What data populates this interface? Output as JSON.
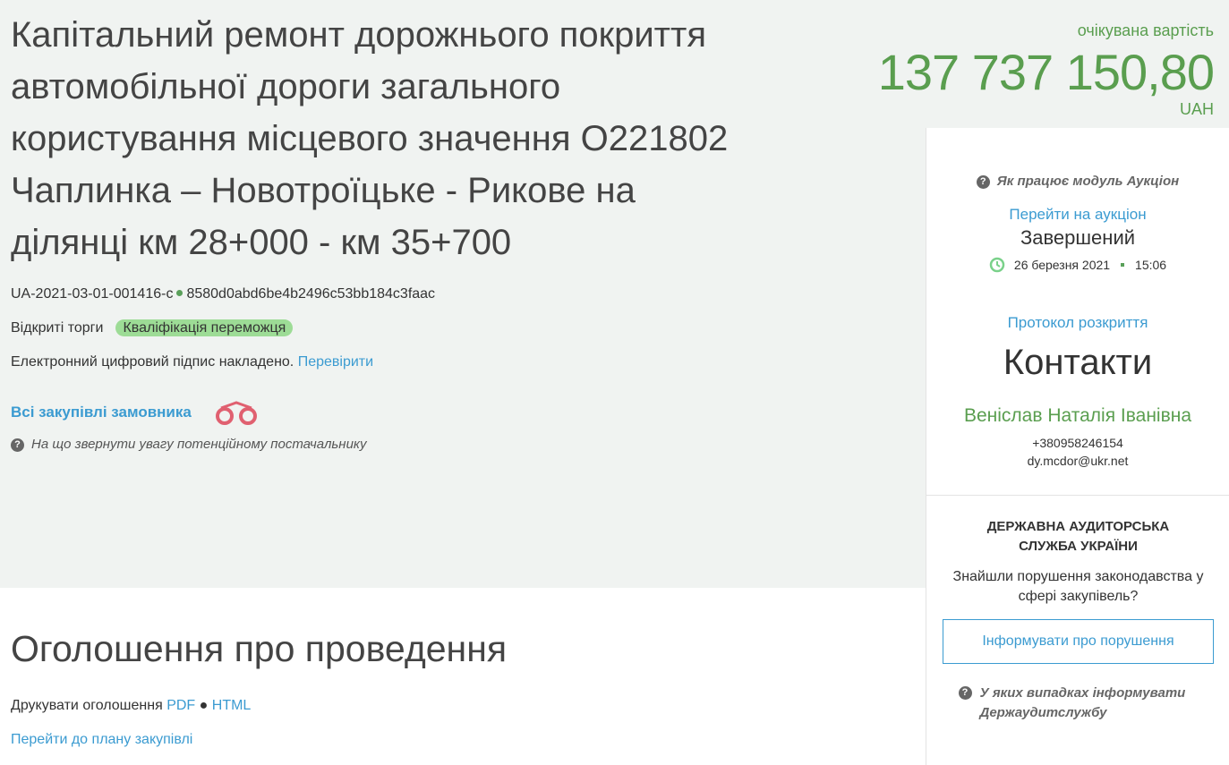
{
  "tender": {
    "title": "Капітальний ремонт дорожнього покриття автомобільної дороги загального користування місцевого значення О221802 Чаплинка – Новотроїцьке - Рикове на ділянці км 28+000 - км 35+700",
    "id": "UA-2021-03-01-001416-c",
    "hash": "8580d0abd6be4b2496c53bb184c3faac",
    "type": "Відкриті торги",
    "status": "Кваліфікація переможця",
    "signature_text": "Електронний цифровий підпис накладено.",
    "signature_link": "Перевірити",
    "all_purchases": "Всі закупівлі замовника",
    "hint": "На що звернути увагу потенційному постачальнику"
  },
  "price": {
    "label": "очікувана вартість",
    "value": "137 737 150,80",
    "currency": "UAH"
  },
  "auction": {
    "help": "Як працює модуль Аукціон",
    "link": "Перейти на аукціон",
    "status": "Завершений",
    "date": "26 березня 2021",
    "time": "15:06",
    "protocol": "Протокол розкриття"
  },
  "contacts": {
    "title": "Контакти",
    "name": "Веніслав Наталія Іванівна",
    "phone": "+380958246154",
    "email": "dy.mcdor@ukr.net"
  },
  "audit": {
    "title": "ДЕРЖАВНА АУДИТОРСЬКА СЛУЖБА УКРАЇНИ",
    "question": "Знайшли порушення законодавства у сфері закупівель?",
    "button": "Інформувати про порушення",
    "help": "У яких випадках інформувати Держаудитслужбу"
  },
  "announcement": {
    "title": "Оголошення про проведення",
    "print": "Друкувати оголошення",
    "pdf": "PDF",
    "html": "HTML",
    "plan_link": "Перейти до плану закупівлі"
  },
  "colors": {
    "green": "#5a9e4f",
    "link": "#3b9bd1",
    "badge": "#9ddc96"
  }
}
